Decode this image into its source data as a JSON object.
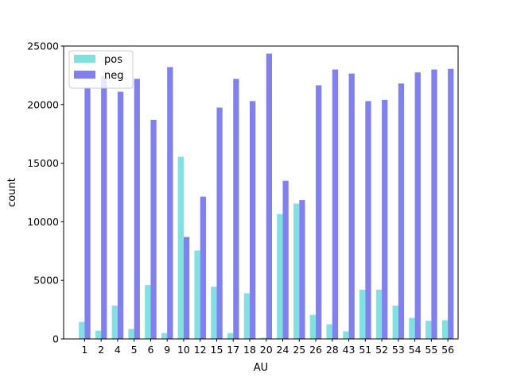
{
  "chart_data": {
    "type": "bar",
    "categories": [
      "1",
      "2",
      "4",
      "5",
      "6",
      "9",
      "10",
      "12",
      "15",
      "17",
      "18",
      "20",
      "24",
      "25",
      "26",
      "28",
      "43",
      "51",
      "52",
      "53",
      "54",
      "55",
      "56"
    ],
    "series": [
      {
        "name": "pos",
        "color": "#80e1e1",
        "values": [
          1450,
          700,
          2850,
          850,
          4600,
          500,
          15550,
          7550,
          4450,
          500,
          3900,
          100,
          10650,
          11550,
          2050,
          1250,
          650,
          4200,
          4200,
          2850,
          1800,
          1550,
          1600
        ]
      },
      {
        "name": "neg",
        "color": "#8080f2",
        "values": [
          21450,
          22450,
          21100,
          22200,
          18700,
          23200,
          8700,
          12150,
          19750,
          22200,
          20300,
          24350,
          13500,
          11850,
          21650,
          23000,
          22650,
          20300,
          20400,
          21800,
          22750,
          23000,
          23050
        ]
      }
    ],
    "xlabel": "AU",
    "ylabel": "count",
    "ylim": [
      0,
      25000
    ],
    "yticks": [
      0,
      5000,
      10000,
      15000,
      20000,
      25000
    ],
    "legend_position": "top-left",
    "grid": false
  }
}
